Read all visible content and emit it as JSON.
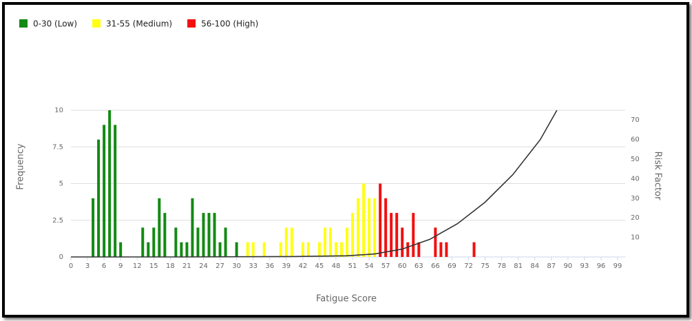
{
  "chart_data": {
    "type": "histogram",
    "x_label": "Fatigue Score",
    "y_label": "Frequency",
    "y2_label": "Risk Factor",
    "series": [
      {
        "name": "0-30 (Low)",
        "color": "#138a13",
        "x": [
          4,
          5,
          6,
          7,
          8,
          9,
          13,
          14,
          15,
          16,
          17,
          19,
          20,
          21,
          22,
          23,
          24,
          25,
          26,
          27,
          28,
          30
        ],
        "values": [
          4,
          8,
          9,
          10,
          9,
          1,
          2,
          1,
          2,
          4,
          3,
          2,
          1,
          1,
          4,
          2,
          3,
          3,
          3,
          1,
          2,
          1
        ]
      },
      {
        "name": "31-55 (Medium)",
        "color": "#ffff14",
        "x": [
          32,
          33,
          35,
          38,
          39,
          40,
          42,
          43,
          45,
          46,
          47,
          48,
          49,
          50,
          51,
          52,
          53,
          54,
          55
        ],
        "values": [
          1,
          1,
          1,
          1,
          2,
          2,
          1,
          1,
          1,
          2,
          2,
          1,
          1,
          2,
          3,
          4,
          5,
          4,
          4
        ]
      },
      {
        "name": "56-100 (High)",
        "color": "#f21010",
        "x": [
          56,
          57,
          58,
          59,
          60,
          61,
          62,
          63,
          66,
          67,
          68,
          73
        ],
        "values": [
          5,
          4,
          3,
          3,
          2,
          1,
          3,
          1,
          2,
          1,
          1,
          1
        ]
      }
    ],
    "curve": {
      "axis": "y2",
      "color": "#333333",
      "x": [
        0,
        20,
        40,
        50,
        55,
        60,
        65,
        70,
        75,
        80,
        85,
        88
      ],
      "values": [
        0,
        0,
        0.2,
        0.6,
        1.5,
        4,
        9,
        17,
        28,
        42,
        60,
        75
      ]
    },
    "xlim": [
      0,
      99
    ],
    "xticks": [
      0,
      3,
      6,
      9,
      12,
      15,
      18,
      21,
      24,
      27,
      30,
      33,
      36,
      39,
      42,
      45,
      48,
      51,
      54,
      57,
      60,
      63,
      66,
      69,
      72,
      75,
      78,
      81,
      84,
      87,
      90,
      93,
      96,
      99
    ],
    "ylim": [
      0,
      10
    ],
    "yticks": [
      0,
      2.5,
      5,
      7.5,
      10
    ],
    "y2lim": [
      0,
      75
    ],
    "y2ticks": [
      10,
      20,
      30,
      40,
      50,
      60,
      70
    ],
    "grid": true,
    "legend": "top-left"
  }
}
